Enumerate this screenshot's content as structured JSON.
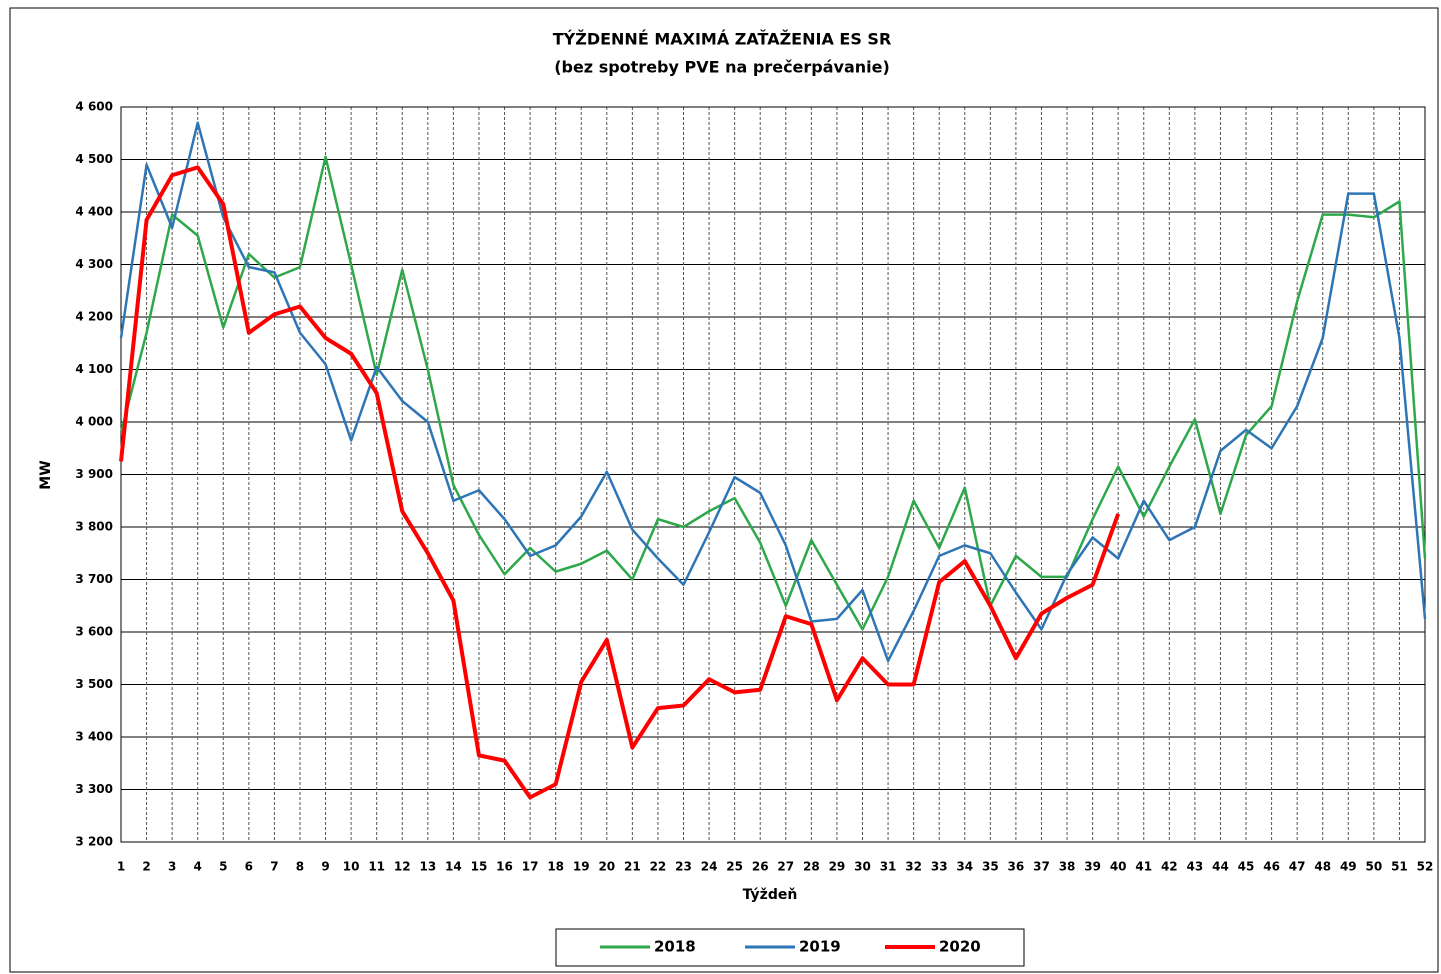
{
  "chart_data": {
    "type": "line",
    "title": "TÝŽDENNÉ MAXIMÁ ZAŤAŽENIA ES SR",
    "subtitle": "(bez spotreby PVE na prečerpávanie)",
    "x_label": "Týždeň",
    "y_label": "MW",
    "x": [
      1,
      2,
      3,
      4,
      5,
      6,
      7,
      8,
      9,
      10,
      11,
      12,
      13,
      14,
      15,
      16,
      17,
      18,
      19,
      20,
      21,
      22,
      23,
      24,
      25,
      26,
      27,
      28,
      29,
      30,
      31,
      32,
      33,
      34,
      35,
      36,
      37,
      38,
      39,
      40,
      41,
      42,
      43,
      44,
      45,
      46,
      47,
      48,
      49,
      50,
      51,
      52
    ],
    "xlim": [
      1,
      52
    ],
    "xticks": [
      1,
      2,
      3,
      4,
      5,
      6,
      7,
      8,
      9,
      10,
      11,
      12,
      13,
      14,
      15,
      16,
      17,
      18,
      19,
      20,
      21,
      22,
      23,
      24,
      25,
      26,
      27,
      28,
      29,
      30,
      31,
      32,
      33,
      34,
      35,
      36,
      37,
      38,
      39,
      40,
      41,
      42,
      43,
      44,
      45,
      46,
      47,
      48,
      49,
      50,
      51,
      52
    ],
    "ylim": [
      3200,
      4600
    ],
    "yticks": [
      {
        "value": 3200,
        "label": "3 200"
      },
      {
        "value": 3300,
        "label": "3 300"
      },
      {
        "value": 3400,
        "label": "3 400"
      },
      {
        "value": 3500,
        "label": "3 500"
      },
      {
        "value": 3600,
        "label": "3 600"
      },
      {
        "value": 3700,
        "label": "3 700"
      },
      {
        "value": 3800,
        "label": "3 800"
      },
      {
        "value": 3900,
        "label": "3 900"
      },
      {
        "value": 4000,
        "label": "4 000"
      },
      {
        "value": 4100,
        "label": "4 100"
      },
      {
        "value": 4200,
        "label": "4 200"
      },
      {
        "value": 4300,
        "label": "4 300"
      },
      {
        "value": 4400,
        "label": "4 400"
      },
      {
        "value": 4500,
        "label": "4 500"
      },
      {
        "value": 4600,
        "label": "4 600"
      }
    ],
    "grid": true,
    "legend": "bottom",
    "series": [
      {
        "name": "2018",
        "color": "#2ea84a",
        "values": [
          3980,
          4170,
          4395,
          4355,
          4180,
          4320,
          4275,
          4295,
          4505,
          4300,
          4090,
          4290,
          4100,
          3880,
          3785,
          3710,
          3760,
          3715,
          3730,
          3755,
          3700,
          3815,
          3800,
          3830,
          3855,
          3770,
          3650,
          3775,
          3690,
          3605,
          3705,
          3850,
          3760,
          3875,
          3650,
          3745,
          3705,
          3705,
          3815,
          3915,
          3820,
          3915,
          4005,
          3825,
          3975,
          4030,
          4230,
          4395,
          4395,
          4390,
          4420,
          3740
        ]
      },
      {
        "name": "2019",
        "color": "#2e75b6",
        "values": [
          4160,
          4490,
          4370,
          4570,
          4390,
          4295,
          4285,
          4170,
          4110,
          3965,
          4105,
          4040,
          4000,
          3850,
          3870,
          3815,
          3745,
          3765,
          3820,
          3905,
          3795,
          3740,
          3690,
          3790,
          3895,
          3865,
          3765,
          3620,
          3625,
          3680,
          3545,
          3640,
          3745,
          3765,
          3750,
          3675,
          3605,
          3710,
          3780,
          3740,
          3850,
          3775,
          3800,
          3945,
          3985,
          3950,
          4030,
          4160,
          4435,
          4435,
          4160,
          3625
        ]
      },
      {
        "name": "2020",
        "color": "#ff0000",
        "values": [
          3925,
          4385,
          4470,
          4485,
          4415,
          4170,
          4205,
          4220,
          4160,
          4130,
          4055,
          3830,
          3750,
          3660,
          3365,
          3355,
          3285,
          3310,
          3505,
          3585,
          3380,
          3455,
          3460,
          3510,
          3485,
          3490,
          3630,
          3615,
          3470,
          3550,
          3500,
          3500,
          3695,
          3735,
          3650,
          3550,
          3635,
          3665,
          3690,
          3825,
          null,
          null,
          null,
          null,
          null,
          null,
          null,
          null,
          null,
          null,
          null,
          null
        ]
      }
    ]
  }
}
